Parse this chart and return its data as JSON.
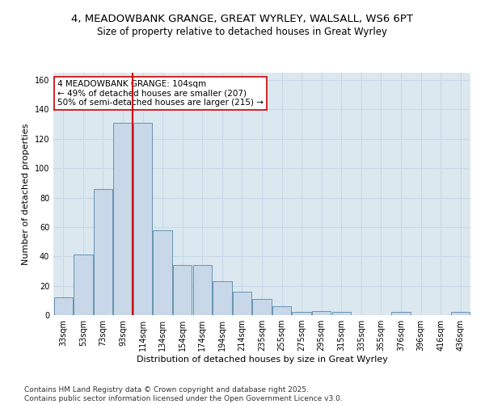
{
  "title1": "4, MEADOWBANK GRANGE, GREAT WYRLEY, WALSALL, WS6 6PT",
  "title2": "Size of property relative to detached houses in Great Wyrley",
  "xlabel": "Distribution of detached houses by size in Great Wyrley",
  "ylabel": "Number of detached properties",
  "categories": [
    "33sqm",
    "53sqm",
    "73sqm",
    "93sqm",
    "114sqm",
    "134sqm",
    "154sqm",
    "174sqm",
    "194sqm",
    "214sqm",
    "235sqm",
    "255sqm",
    "275sqm",
    "295sqm",
    "315sqm",
    "335sqm",
    "355sqm",
    "376sqm",
    "396sqm",
    "416sqm",
    "436sqm"
  ],
  "values": [
    12,
    41,
    86,
    131,
    131,
    58,
    34,
    34,
    23,
    16,
    11,
    6,
    2,
    3,
    2,
    0,
    0,
    2,
    0,
    0,
    2
  ],
  "bar_color": "#c8d8e8",
  "bar_edge_color": "#5588aa",
  "vline_x": 3.5,
  "vline_color": "#cc0000",
  "annotation_text": "4 MEADOWBANK GRANGE: 104sqm\n← 49% of detached houses are smaller (207)\n50% of semi-detached houses are larger (215) →",
  "annotation_box_color": "white",
  "annotation_box_edge": "#cc0000",
  "ylim": [
    0,
    165
  ],
  "yticks": [
    0,
    20,
    40,
    60,
    80,
    100,
    120,
    140,
    160
  ],
  "grid_color": "#c8d8e8",
  "bg_color": "#dce8f0",
  "footer": "Contains HM Land Registry data © Crown copyright and database right 2025.\nContains public sector information licensed under the Open Government Licence v3.0.",
  "title_fontsize": 9.5,
  "subtitle_fontsize": 8.5,
  "axis_label_fontsize": 8,
  "tick_fontsize": 7,
  "annotation_fontsize": 7.5,
  "footer_fontsize": 6.5
}
